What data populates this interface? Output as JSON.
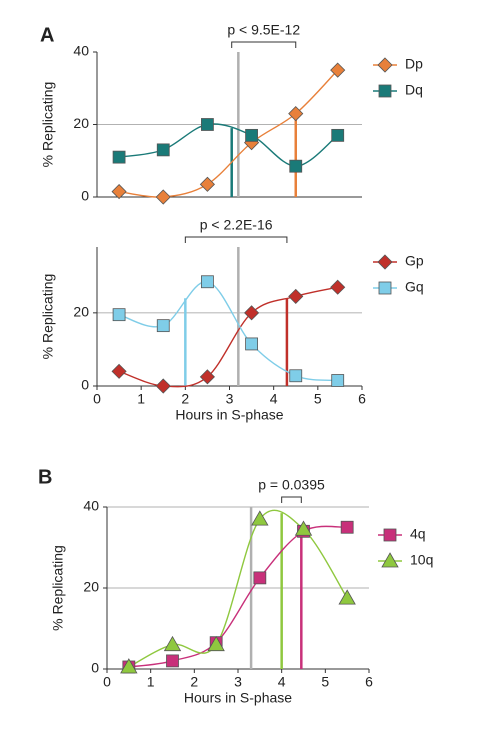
{
  "chart_data": [
    {
      "type": "line",
      "panel": "A",
      "ylabel": "% Replicating",
      "xlim": [
        0,
        6
      ],
      "ylim": [
        0,
        40
      ],
      "yticks": [
        0,
        20,
        40
      ],
      "grid_y": [
        20
      ],
      "x": [
        0.5,
        1.5,
        2.5,
        3.5,
        4.5,
        5.45
      ],
      "series": [
        {
          "name": "Dp",
          "color": "#e8803a",
          "marker": "diamond",
          "values": [
            1.5,
            0,
            3.5,
            15,
            23,
            35
          ]
        },
        {
          "name": "Dq",
          "color": "#1a7a78",
          "marker": "square",
          "values": [
            11,
            13,
            20,
            17,
            8.5,
            17
          ]
        }
      ],
      "vlines": [
        {
          "x": 3.2,
          "color": "#b0b0b0"
        },
        {
          "x": 3.05,
          "top": 19,
          "color": "#1a7a78"
        },
        {
          "x": 4.5,
          "top": 23,
          "color": "#e8803a"
        }
      ],
      "annotation": {
        "text": "p < 9.5E-12",
        "x": [
          3.05,
          4.5
        ]
      }
    },
    {
      "type": "line",
      "xlabel": "Hours in S-phase",
      "ylabel": "% Replicating",
      "xlim": [
        0,
        6
      ],
      "xticks": [
        0,
        1,
        2,
        3,
        4,
        5,
        6
      ],
      "ylim": [
        0,
        38
      ],
      "yticks": [
        0,
        20
      ],
      "grid_y": [
        20
      ],
      "x": [
        0.5,
        1.5,
        2.5,
        3.5,
        4.5,
        5.45
      ],
      "series": [
        {
          "name": "Gp",
          "color": "#c0302a",
          "marker": "diamond",
          "values": [
            4,
            0,
            2.5,
            20,
            24.5,
            27
          ]
        },
        {
          "name": "Gq",
          "color": "#7fcde8",
          "marker": "square",
          "values": [
            19.5,
            16.5,
            28.5,
            11.5,
            2.8,
            1.5
          ]
        }
      ],
      "vlines": [
        {
          "x": 3.2,
          "color": "#b0b0b0"
        },
        {
          "x": 2.0,
          "top": 24,
          "color": "#7fcde8"
        },
        {
          "x": 4.3,
          "top": 24,
          "color": "#c0302a"
        }
      ],
      "annotation": {
        "text": "p < 2.2E-16",
        "x": [
          2.0,
          4.3
        ]
      }
    },
    {
      "type": "line",
      "panel": "B",
      "xlabel": "Hours in S-phase",
      "ylabel": "% Replicating",
      "xlim": [
        0,
        6
      ],
      "xticks": [
        0,
        1,
        2,
        3,
        4,
        5,
        6
      ],
      "ylim": [
        0,
        40
      ],
      "yticks": [
        0,
        20,
        40
      ],
      "grid_y": [
        20,
        40
      ],
      "x": [
        0.5,
        1.5,
        2.5,
        3.5,
        4.5,
        5.5
      ],
      "series": [
        {
          "name": "4q",
          "color": "#c8307a",
          "marker": "square",
          "values": [
            0.5,
            2,
            6.5,
            22.5,
            34,
            35
          ]
        },
        {
          "name": "10q",
          "color": "#8fc83f",
          "marker": "triangle",
          "values": [
            0.5,
            6,
            6,
            37,
            34.5,
            17.5
          ]
        }
      ],
      "vlines": [
        {
          "x": 3.3,
          "color": "#b0b0b0"
        },
        {
          "x": 4.0,
          "top": 38.5,
          "color": "#8fc83f"
        },
        {
          "x": 4.45,
          "top": 34,
          "color": "#c8307a"
        }
      ],
      "annotation": {
        "text": "p = 0.0395",
        "x": [
          4.0,
          4.45
        ]
      }
    }
  ]
}
